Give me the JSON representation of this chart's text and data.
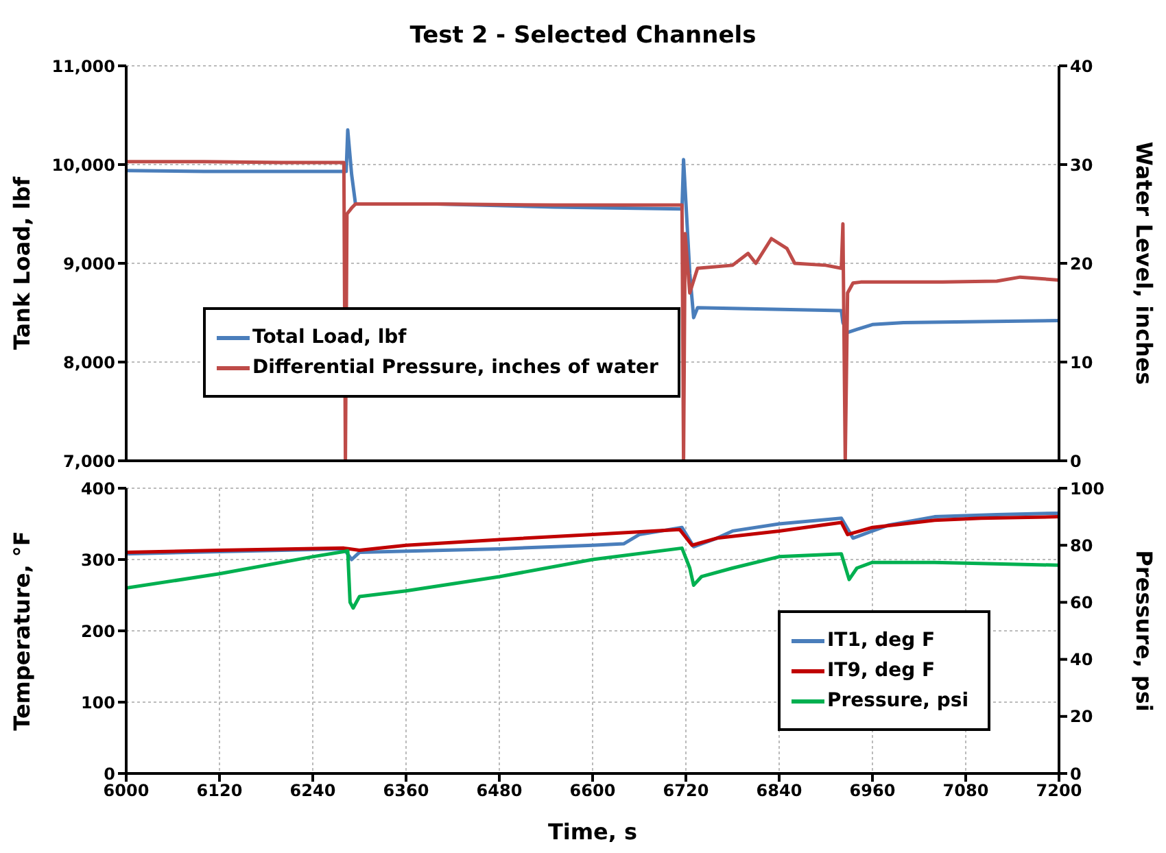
{
  "chart_data": [
    {
      "type": "line",
      "title": "Test 2 - Selected Channels",
      "ylabel": "Tank Load, lbf",
      "y2label": "Water Level, inches",
      "xlim": [
        6000,
        7200
      ],
      "xticks": [
        6000,
        6120,
        6240,
        6360,
        6480,
        6600,
        6720,
        6840,
        6960,
        7080,
        7200
      ],
      "ylim": [
        7000,
        11000
      ],
      "yticks": [
        {
          "value": 7000,
          "label": "7,000"
        },
        {
          "value": 8000,
          "label": "8,000"
        },
        {
          "value": 9000,
          "label": "9,000"
        },
        {
          "value": 10000,
          "label": "10,000"
        },
        {
          "value": 11000,
          "label": "11,000"
        }
      ],
      "y2lim": [
        0,
        40
      ],
      "y2ticks": [
        0,
        10,
        20,
        30,
        40
      ],
      "grid": true,
      "legend": "bottom left",
      "tick_labels": "y",
      "marker": "none",
      "line_style": "solid",
      "series": [
        {
          "name": "Total Load, lbf",
          "color": "#4a7ebb",
          "x": [
            6000,
            6100,
            6200,
            6283,
            6285,
            6290,
            6295,
            6400,
            6550,
            6715,
            6717,
            6725,
            6730,
            6735,
            6800,
            6920,
            6922,
            6928,
            6940,
            6960,
            7000,
            7100,
            7200
          ],
          "values": [
            9940,
            9930,
            9930,
            9930,
            10350,
            9900,
            9600,
            9600,
            9570,
            9550,
            10050,
            8900,
            8450,
            8550,
            8540,
            8520,
            8400,
            8300,
            8330,
            8380,
            8400,
            8410,
            8420
          ]
        },
        {
          "name": "Differential Pressure, inches of water",
          "color": "#be4b48",
          "axis": "y2",
          "x": [
            6000,
            6100,
            6200,
            6280,
            6282,
            6284,
            6290,
            6295,
            6400,
            6550,
            6715,
            6717,
            6719,
            6725,
            6735,
            6780,
            6800,
            6810,
            6830,
            6850,
            6860,
            6900,
            6920,
            6922,
            6925,
            6928,
            6935,
            6945,
            7050,
            7120,
            7150,
            7200
          ],
          "values": [
            30.3,
            30.3,
            30.2,
            30.2,
            0,
            25,
            25.6,
            26,
            26,
            25.9,
            25.9,
            0,
            23,
            17,
            19.5,
            19.8,
            21,
            20,
            22.5,
            21.5,
            20,
            19.8,
            19.5,
            24,
            0,
            17,
            18,
            18.1,
            18.1,
            18.2,
            18.6,
            18.3
          ]
        }
      ]
    },
    {
      "type": "line",
      "xlabel": "Time, s",
      "ylabel": "Temperature, °F",
      "y2label": "Pressure, psi",
      "xlim": [
        6000,
        7200
      ],
      "xticks": [
        6000,
        6120,
        6240,
        6360,
        6480,
        6600,
        6720,
        6840,
        6960,
        7080,
        7200
      ],
      "ylim": [
        0,
        400
      ],
      "yticks": [
        0,
        100,
        200,
        300,
        400
      ],
      "y2lim": [
        0,
        100
      ],
      "y2ticks": [
        0,
        20,
        40,
        60,
        80,
        100
      ],
      "grid": true,
      "legend": "bottom right",
      "marker": "none",
      "line_style": "solid",
      "series": [
        {
          "name": "IT1, deg F",
          "color": "#4a7ebb",
          "x": [
            6000,
            6120,
            6280,
            6290,
            6300,
            6480,
            6600,
            6640,
            6660,
            6715,
            6730,
            6760,
            6780,
            6840,
            6920,
            6935,
            6960,
            6980,
            7040,
            7120,
            7200
          ],
          "values": [
            308,
            311,
            315,
            300,
            310,
            315,
            320,
            322,
            335,
            345,
            318,
            330,
            340,
            350,
            358,
            330,
            340,
            348,
            360,
            363,
            365
          ]
        },
        {
          "name": "IT9, deg F",
          "color": "#c00000",
          "x": [
            6000,
            6120,
            6280,
            6300,
            6360,
            6480,
            6600,
            6712,
            6728,
            6760,
            6840,
            6920,
            6928,
            6960,
            7040,
            7100,
            7200
          ],
          "values": [
            310,
            313,
            316,
            313,
            320,
            328,
            335,
            342,
            320,
            330,
            340,
            352,
            335,
            345,
            355,
            358,
            360
          ]
        },
        {
          "name": "Pressure, psi",
          "color": "#00b050",
          "axis": "y2",
          "x": [
            6000,
            6120,
            6240,
            6285,
            6288,
            6292,
            6300,
            6360,
            6480,
            6600,
            6715,
            6725,
            6730,
            6740,
            6780,
            6840,
            6920,
            6930,
            6940,
            6960,
            7040,
            7200
          ],
          "values": [
            65,
            70,
            76,
            78,
            60,
            58,
            62,
            64,
            69,
            75,
            79,
            72,
            66,
            69,
            72,
            76,
            77,
            68,
            72,
            74,
            74,
            73
          ]
        }
      ]
    }
  ]
}
